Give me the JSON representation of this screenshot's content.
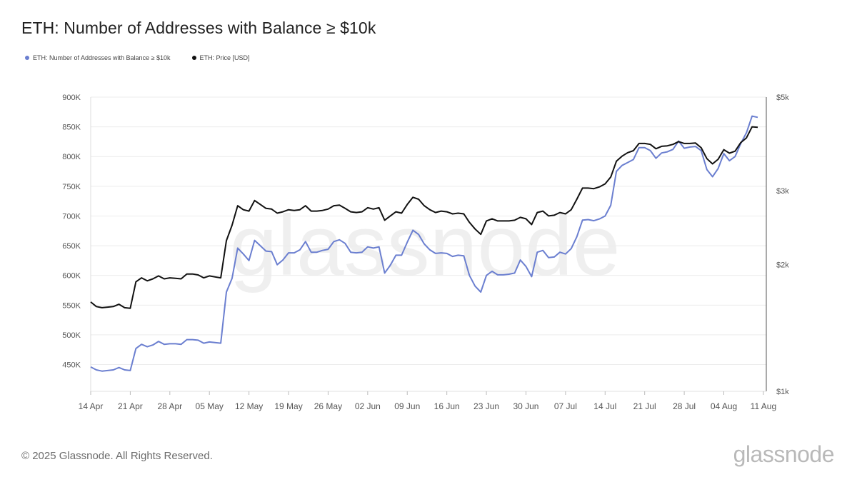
{
  "header": {
    "title": "ETH: Number of Addresses with Balance ≥ $10k"
  },
  "footer": {
    "copyright": "© 2025 Glassnode. All Rights Reserved.",
    "brand": "glassnode"
  },
  "watermark": "glassnode",
  "chart_data": {
    "type": "line",
    "title": "ETH: Number of Addresses with Balance ≥ $10k",
    "legend_position": "top-left",
    "grid": true,
    "x_ticks": [
      "14 Apr",
      "21 Apr",
      "28 Apr",
      "05 May",
      "12 May",
      "19 May",
      "26 May",
      "02 Jun",
      "09 Jun",
      "16 Jun",
      "23 Jun",
      "30 Jun",
      "07 Jul",
      "14 Jul",
      "21 Jul",
      "28 Jul",
      "04 Aug",
      "11 Aug"
    ],
    "x_start": "2025-04-14",
    "y_left": {
      "ticks": [
        "450K",
        "500K",
        "550K",
        "600K",
        "650K",
        "700K",
        "750K",
        "800K",
        "850K",
        "900K"
      ],
      "min": 405000,
      "max": 900000
    },
    "y_right": {
      "scale": "log",
      "ticks": [
        "$1k",
        "$2k",
        "$3k",
        "$5k"
      ],
      "tick_values": [
        1000,
        2000,
        3000,
        5000
      ],
      "min": 1000,
      "max": 5000
    },
    "series": [
      {
        "name": "ETH: Number of Addresses with Balance ≥ $10k",
        "color": "#6b7fd0",
        "axis": "left",
        "values": [
          446000,
          441000,
          439000,
          440000,
          441000,
          445000,
          441000,
          440000,
          477000,
          484000,
          480000,
          483000,
          489000,
          484000,
          485000,
          485000,
          484000,
          492000,
          492000,
          491000,
          486000,
          488000,
          487000,
          486000,
          572000,
          595000,
          646000,
          636000,
          625000,
          659000,
          650000,
          641000,
          640000,
          618000,
          626000,
          638000,
          638000,
          643000,
          657000,
          639000,
          639000,
          642000,
          644000,
          657000,
          660000,
          654000,
          639000,
          638000,
          639000,
          648000,
          646000,
          648000,
          604000,
          617000,
          634000,
          634000,
          656000,
          676000,
          669000,
          653000,
          643000,
          637000,
          638000,
          637000,
          632000,
          634000,
          633000,
          600000,
          582000,
          572000,
          600000,
          607000,
          601000,
          601000,
          602000,
          604000,
          626000,
          615000,
          598000,
          639000,
          642000,
          630000,
          631000,
          639000,
          636000,
          645000,
          665000,
          693000,
          694000,
          692000,
          695000,
          700000,
          718000,
          775000,
          785000,
          790000,
          795000,
          815000,
          815000,
          810000,
          797000,
          806000,
          808000,
          812000,
          826000,
          814000,
          816000,
          817000,
          810000,
          778000,
          766000,
          780000,
          805000,
          793000,
          800000,
          822000,
          840000,
          868000,
          866000
        ]
      },
      {
        "name": "ETH: Price [USD]",
        "color": "#111111",
        "axis": "right",
        "values": [
          1630,
          1590,
          1580,
          1585,
          1590,
          1610,
          1580,
          1575,
          1820,
          1860,
          1830,
          1850,
          1880,
          1850,
          1860,
          1855,
          1850,
          1900,
          1900,
          1890,
          1860,
          1880,
          1870,
          1860,
          2280,
          2480,
          2760,
          2700,
          2680,
          2840,
          2780,
          2720,
          2710,
          2650,
          2670,
          2700,
          2690,
          2700,
          2760,
          2680,
          2680,
          2690,
          2710,
          2760,
          2770,
          2720,
          2670,
          2660,
          2670,
          2730,
          2710,
          2730,
          2550,
          2610,
          2670,
          2650,
          2780,
          2890,
          2860,
          2760,
          2700,
          2660,
          2680,
          2670,
          2640,
          2650,
          2640,
          2520,
          2430,
          2360,
          2540,
          2570,
          2540,
          2540,
          2540,
          2550,
          2590,
          2570,
          2490,
          2660,
          2680,
          2610,
          2620,
          2660,
          2640,
          2700,
          2860,
          3040,
          3040,
          3030,
          3060,
          3110,
          3230,
          3520,
          3620,
          3690,
          3730,
          3880,
          3880,
          3860,
          3770,
          3820,
          3830,
          3860,
          3920,
          3880,
          3880,
          3890,
          3790,
          3570,
          3470,
          3560,
          3750,
          3680,
          3720,
          3900,
          4000,
          4250,
          4240
        ]
      }
    ]
  }
}
